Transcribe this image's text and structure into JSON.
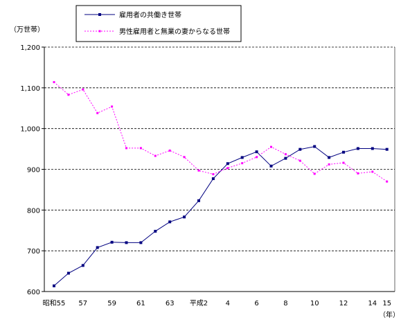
{
  "chart_data": {
    "type": "line",
    "y_unit_label": "（万世帯）",
    "x_unit_label": "（年）",
    "ylim": [
      600,
      1200
    ],
    "y_ticks": [
      600,
      700,
      800,
      900,
      1000,
      1100,
      1200
    ],
    "y_tick_labels": [
      "600",
      "700",
      "800",
      "900",
      "1,000",
      "1,100",
      "1,200"
    ],
    "grid": "horizontal dashed",
    "legend_position": "top-center",
    "x_labels": [
      {
        "i": 0,
        "text": "昭和55"
      },
      {
        "i": 2,
        "text": "57"
      },
      {
        "i": 4,
        "text": "59"
      },
      {
        "i": 6,
        "text": "61"
      },
      {
        "i": 8,
        "text": "63"
      },
      {
        "i": 10,
        "text": "平成2"
      },
      {
        "i": 12,
        "text": "4"
      },
      {
        "i": 14,
        "text": "6"
      },
      {
        "i": 16,
        "text": "8"
      },
      {
        "i": 18,
        "text": "10"
      },
      {
        "i": 20,
        "text": "12"
      },
      {
        "i": 22,
        "text": "14"
      },
      {
        "i": 23,
        "text": "15"
      }
    ],
    "series": [
      {
        "name": "雇用者の共働き世帯",
        "color": "#000080",
        "style": "solid",
        "marker": "square",
        "values": [
          614,
          645,
          664,
          708,
          721,
          720,
          720,
          748,
          771,
          783,
          823,
          877,
          914,
          929,
          943,
          908,
          927,
          949,
          956,
          929,
          942,
          951,
          951,
          949
        ]
      },
      {
        "name": "男性雇用者と無業の妻からなる世帯",
        "color": "#ff00ff",
        "style": "dotted",
        "marker": "small-square",
        "values": [
          1114,
          1083,
          1096,
          1038,
          1054,
          952,
          952,
          933,
          946,
          930,
          897,
          888,
          903,
          915,
          930,
          955,
          937,
          921,
          889,
          912,
          916,
          890,
          894,
          870
        ]
      }
    ]
  }
}
